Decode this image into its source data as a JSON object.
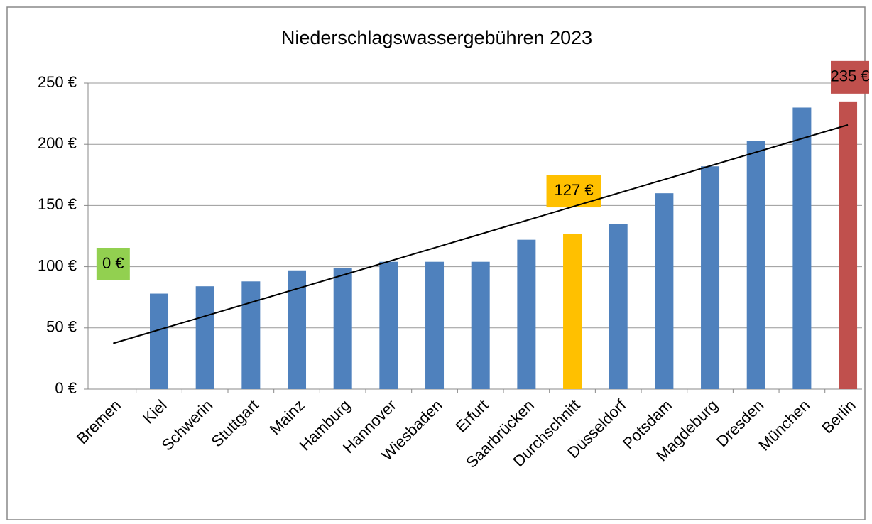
{
  "chart_data": {
    "type": "bar",
    "title": "Niederschlagswassergebühren 2023",
    "categories": [
      "Bremen",
      "Kiel",
      "Schwerin",
      "Stuttgart",
      "Mainz",
      "Hamburg",
      "Hannover",
      "Wiesbaden",
      "Erfurt",
      "Saarbrücken",
      "Durchschnitt",
      "Düsseldorf",
      "Potsdam",
      "Magdeburg",
      "Dresden",
      "München",
      "Berlin"
    ],
    "values": [
      0,
      78,
      84,
      88,
      97,
      99,
      104,
      104,
      104,
      122,
      127,
      135,
      160,
      182,
      203,
      230,
      235
    ],
    "value_labels": [
      "0 €",
      null,
      null,
      null,
      null,
      null,
      null,
      null,
      null,
      null,
      "127 €",
      null,
      null,
      null,
      null,
      null,
      "235 €"
    ],
    "colors": [
      "#92d050",
      "#4f81bd",
      "#4f81bd",
      "#4f81bd",
      "#4f81bd",
      "#4f81bd",
      "#4f81bd",
      "#4f81bd",
      "#4f81bd",
      "#4f81bd",
      "#ffc000",
      "#4f81bd",
      "#4f81bd",
      "#4f81bd",
      "#4f81bd",
      "#4f81bd",
      "#c0504d"
    ],
    "ylim": [
      0,
      250
    ],
    "yticks": [
      {
        "value": 0,
        "label": "0 €"
      },
      {
        "value": 50,
        "label": "50 €"
      },
      {
        "value": 100,
        "label": "100 €"
      },
      {
        "value": 150,
        "label": "150 €"
      },
      {
        "value": 200,
        "label": "200 €"
      },
      {
        "value": 250,
        "label": "250 €"
      }
    ],
    "grid": true,
    "trendline": "linear"
  }
}
